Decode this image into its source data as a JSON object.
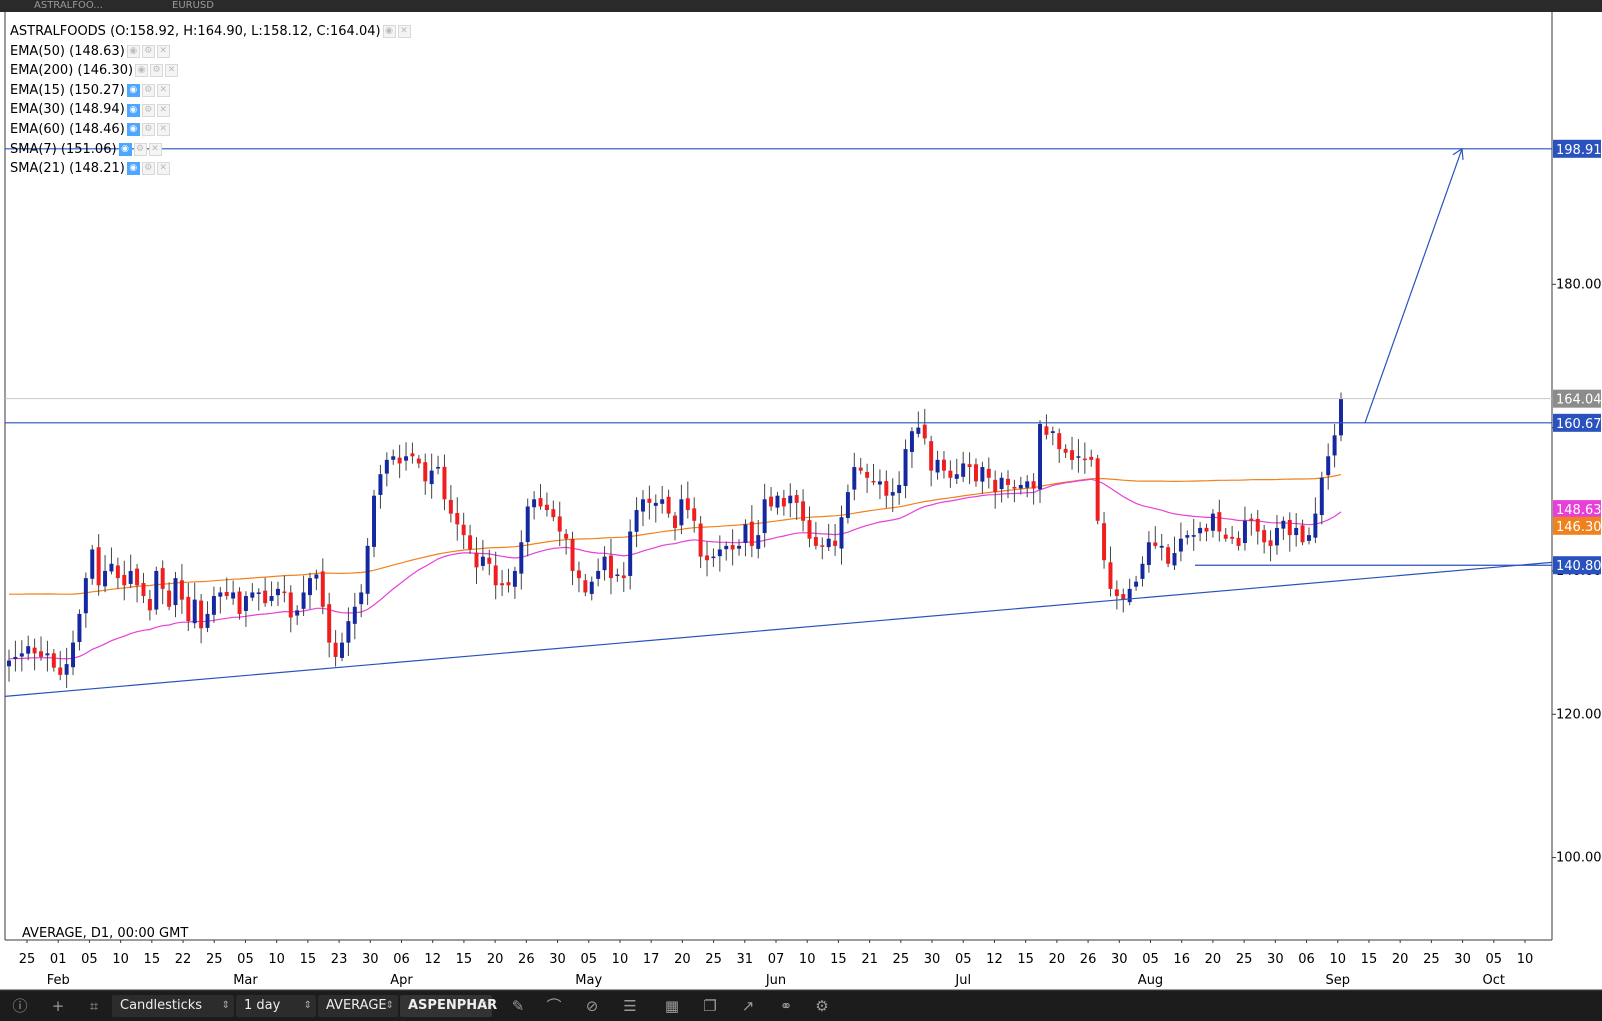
{
  "tabs": [
    {
      "label": "ASTRALFOO..."
    },
    {
      "label": "EURUSD"
    }
  ],
  "legend": {
    "title": "ASTRALFOODS (O:158.92, H:164.90, L:158.12, C:164.04)",
    "indicators": [
      {
        "label": "EMA(50) (148.63)",
        "visible": false
      },
      {
        "label": "EMA(200) (146.30)",
        "visible": false
      },
      {
        "label": "EMA(15) (150.27)",
        "visible": true
      },
      {
        "label": "EMA(30) (148.94)",
        "visible": true
      },
      {
        "label": "EMA(60) (148.46)",
        "visible": true
      },
      {
        "label": "SMA(7) (151.06)",
        "visible": true
      },
      {
        "label": "SMA(21) (148.21)",
        "visible": true
      }
    ]
  },
  "footer_label": "AVERAGE, D1, 00:00 GMT",
  "chart_data": {
    "type": "candlestick",
    "symbol": "ASTRALFOODS",
    "timeframe": "D1",
    "ylim": [
      88.5,
      218
    ],
    "y_ticks": [
      100,
      120,
      140,
      160,
      180
    ],
    "x_tick_labels": [
      "25",
      "01",
      "05",
      "10",
      "15",
      "22",
      "25",
      "05",
      "10",
      "15",
      "23",
      "30",
      "06",
      "12",
      "15",
      "20",
      "26",
      "30",
      "05",
      "10",
      "17",
      "20",
      "25",
      "31",
      "07",
      "10",
      "15",
      "21",
      "25",
      "30",
      "05",
      "12",
      "15",
      "20",
      "26",
      "30",
      "05",
      "16",
      "20",
      "25",
      "30",
      "06",
      "10",
      "15",
      "20",
      "25",
      "30",
      "05",
      "10"
    ],
    "month_labels": [
      "Feb",
      "Mar",
      "Apr",
      "May",
      "Jun",
      "Jul",
      "Aug",
      "Sep",
      "Oct"
    ],
    "price_labels": [
      {
        "value": 198.91,
        "label": "198.91",
        "color": "#2a52be"
      },
      {
        "value": 164.04,
        "label": "164.04",
        "color": "#8c8c8c"
      },
      {
        "value": 160.67,
        "label": "160.67",
        "color": "#2a52be"
      },
      {
        "value": 148.63,
        "label": "148.63",
        "color": "#e83fd9"
      },
      {
        "value": 146.3,
        "label": "146.30",
        "color": "#f0821e"
      },
      {
        "value": 140.8,
        "label": "140.80",
        "color": "#2a52be"
      }
    ],
    "candles_close": [
      127.5,
      128.0,
      128.5,
      129.5,
      128.5,
      128.0,
      128.5,
      126.5,
      125.5,
      127.0,
      130.0,
      134.0,
      139.0,
      143.0,
      138.0,
      140.0,
      141.0,
      139.0,
      138.0,
      140.0,
      138.0,
      136.5,
      134.5,
      140.0,
      137.5,
      135.0,
      139.0,
      136.0,
      133.0,
      136.0,
      132.0,
      134.0,
      136.5,
      137.0,
      136.5,
      137.0,
      134.0,
      136.5,
      137.0,
      137.0,
      135.5,
      136.5,
      137.5,
      137.0,
      133.5,
      134.5,
      137.0,
      139.0,
      139.5,
      135.0,
      130.0,
      128.0,
      130.0,
      133.0,
      135.0,
      137.0,
      143.5,
      150.5,
      153.5,
      155.5,
      156.0,
      155.0,
      156.0,
      156.0,
      155.0,
      152.5,
      154.0,
      154.5,
      150.0,
      148.0,
      146.5,
      145.0,
      143.0,
      140.5,
      142.0,
      141.0,
      138.0,
      138.0,
      138.0,
      140.0,
      144.0,
      149.0,
      150.0,
      149.0,
      148.5,
      147.5,
      145.5,
      144.5,
      140.0,
      139.0,
      137.0,
      138.5,
      140.0,
      142.0,
      139.0,
      139.5,
      139.0,
      145.5,
      148.5,
      150.0,
      149.5,
      149.5,
      150.0,
      148.0,
      146.0,
      150.0,
      148.5,
      147.0,
      142.0,
      141.5,
      142.0,
      143.0,
      143.5,
      143.0,
      143.5,
      146.5,
      143.5,
      145.0,
      150.0,
      149.0,
      150.5,
      149.0,
      150.5,
      149.5,
      147.0,
      144.5,
      143.5,
      143.5,
      144.5,
      143.5,
      147.5,
      151.0,
      154.5,
      154.0,
      153.0,
      152.5,
      152.5,
      150.5,
      151.0,
      152.0,
      157.0,
      159.5,
      160.0,
      158.5,
      154.0,
      155.5,
      154.0,
      153.0,
      153.5,
      155.0,
      154.5,
      152.5,
      154.5,
      153.0,
      151.0,
      153.0,
      152.0,
      151.5,
      152.0,
      152.5,
      151.5,
      160.5,
      159.0,
      159.5,
      157.0,
      156.5,
      155.5,
      156.0,
      155.5,
      155.5,
      147.0,
      141.5,
      137.5,
      136.5,
      136.0,
      137.5,
      138.5,
      141.0,
      144.0,
      143.5,
      143.5,
      141.0,
      142.5,
      144.5,
      145.0,
      145.0,
      146.0,
      145.5,
      148.0,
      145.5,
      144.5,
      144.5,
      143.5,
      147.0,
      147.0,
      145.5,
      144.0,
      143.5,
      146.0,
      147.0,
      145.0,
      146.0,
      144.0,
      145.0,
      148.0,
      153.0,
      156.0,
      158.92,
      164.04
    ]
  },
  "toolbar": {
    "chart_type": "Candlesticks",
    "timeframe": "1 day",
    "template": "AVERAGE",
    "symbol": "ASPENPHAR"
  }
}
